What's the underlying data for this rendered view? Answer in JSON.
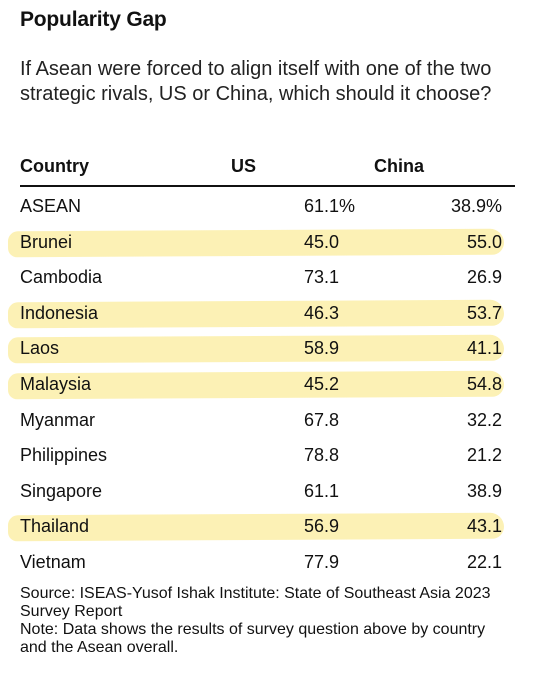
{
  "header": {
    "title": "Popularity Gap",
    "subtitle": "If Asean were forced to align itself with one of the two strategic rivals, US or China, which should it choose?"
  },
  "chart_data": {
    "type": "table",
    "title": "Popularity Gap",
    "columns": [
      "Country",
      "US",
      "China"
    ],
    "rows": [
      {
        "country": "ASEAN",
        "us": "61.1%",
        "china": "38.9%",
        "highlighted": false
      },
      {
        "country": "Brunei",
        "us": "45.0",
        "china": "55.0",
        "highlighted": true
      },
      {
        "country": "Cambodia",
        "us": "73.1",
        "china": "26.9",
        "highlighted": false
      },
      {
        "country": "Indonesia",
        "us": "46.3",
        "china": "53.7",
        "highlighted": true
      },
      {
        "country": "Laos",
        "us": "58.9",
        "china": "41.1",
        "highlighted": true
      },
      {
        "country": "Malaysia",
        "us": "45.2",
        "china": "54.8",
        "highlighted": true
      },
      {
        "country": "Myanmar",
        "us": "67.8",
        "china": "32.2",
        "highlighted": false
      },
      {
        "country": "Philippines",
        "us": "78.8",
        "china": "21.2",
        "highlighted": false
      },
      {
        "country": "Singapore",
        "us": "61.1",
        "china": "38.9",
        "highlighted": false
      },
      {
        "country": "Thailand",
        "us": "56.9",
        "china": "43.1",
        "highlighted": true
      },
      {
        "country": "Vietnam",
        "us": "77.9",
        "china": "22.1",
        "highlighted": false
      }
    ],
    "highlight_color": "#fbeea8"
  },
  "footer": {
    "source": "Source: ISEAS-Yusof Ishak Institute: State of Southeast Asia 2023 Survey Report",
    "note": "Note: Data shows the results of survey question above by country and the Asean overall."
  }
}
